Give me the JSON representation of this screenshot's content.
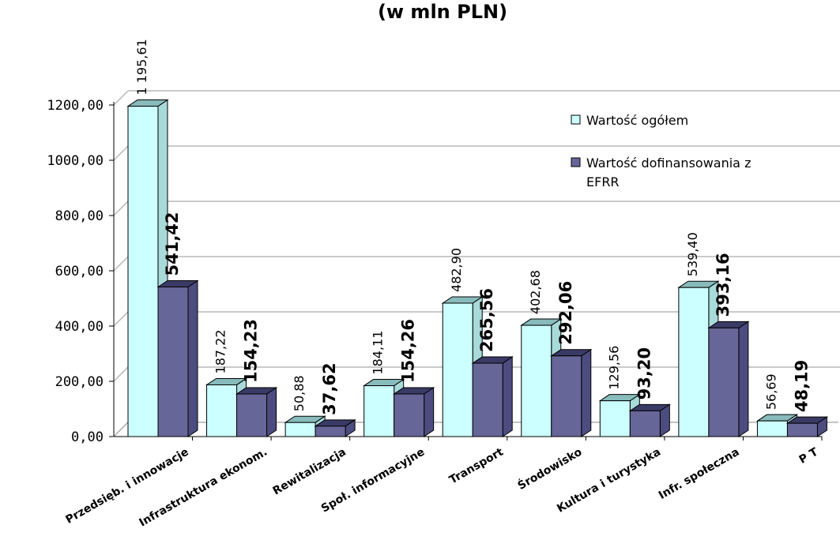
{
  "chart_data": {
    "type": "bar",
    "title": "(w mln PLN)",
    "categories": [
      "Przedsięb. i innowacje",
      "Infrastruktura ekonom.",
      "Rewitalizacja",
      "Społ. informacyjne",
      "Transport",
      "Środowisko",
      "Kultura i turystyka",
      "Infr. społeczna",
      "P T"
    ],
    "series": [
      {
        "name": "Wartość ogółem",
        "values": [
          1195.61,
          187.22,
          50.88,
          184.11,
          482.9,
          402.68,
          129.56,
          539.4,
          56.69
        ],
        "labels": [
          "1 195,61",
          "187,22",
          "50,88",
          "184,11",
          "482,90",
          "402,68",
          "129,56",
          "539,40",
          "56,69"
        ],
        "color": "#ccffff"
      },
      {
        "name": "Wartość dofinansowania z EFRR",
        "values": [
          541.42,
          154.23,
          37.62,
          154.26,
          265.56,
          292.06,
          93.2,
          393.16,
          48.19
        ],
        "labels": [
          "541,42",
          "154,23",
          "37,62",
          "154,26",
          "265,56",
          "292,06",
          "93,20",
          "393,16",
          "48,19"
        ],
        "color": "#666699"
      }
    ],
    "ylim": [
      0,
      1200
    ],
    "yticks": [
      "0,00",
      "200,00",
      "400,00",
      "600,00",
      "800,00",
      "1000,00",
      "1200,00"
    ],
    "legend": [
      "Wartość ogółem",
      "Wartość dofinansowania z",
      "EFRR"
    ],
    "legend_position": "top-right",
    "grid": true
  }
}
